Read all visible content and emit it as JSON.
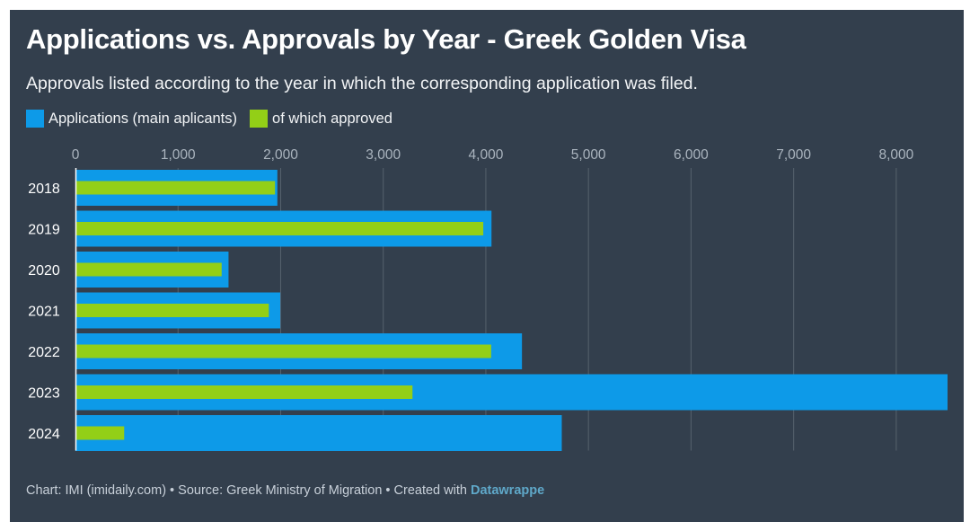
{
  "title": "Applications vs. Approvals by Year - Greek Golden Visa",
  "subtitle": "Approvals listed according to the year in which the corresponding application was filed.",
  "footer": {
    "text": "Chart: IMI (imidaily.com) • Source: Greek Ministry of Migration • Created with ",
    "brand": "Datawrappe"
  },
  "colors": {
    "background": "#333f4d",
    "applications": "#0d9ae8",
    "approved": "#93cf17",
    "grid": "#56616d",
    "tick_text": "#aab4be"
  },
  "chart_data": {
    "type": "bar",
    "orientation": "horizontal",
    "categories": [
      "2018",
      "2019",
      "2020",
      "2021",
      "2022",
      "2023",
      "2024"
    ],
    "series": [
      {
        "name": "Applications (main aplicants)",
        "values": [
          1968,
          4055,
          1492,
          1996,
          4352,
          8500,
          4740
        ]
      },
      {
        "name": "of which approved",
        "values": [
          1945,
          3975,
          1425,
          1885,
          4052,
          3285,
          475
        ]
      }
    ],
    "xlim": [
      0,
      8500
    ],
    "xticks": [
      0,
      1000,
      2000,
      3000,
      4000,
      5000,
      6000,
      7000,
      8000
    ],
    "xtick_labels": [
      "0",
      "1,000",
      "2,000",
      "3,000",
      "4,000",
      "5,000",
      "6,000",
      "7,000",
      "8,000"
    ],
    "grid": true,
    "legend_position": "top-left"
  }
}
